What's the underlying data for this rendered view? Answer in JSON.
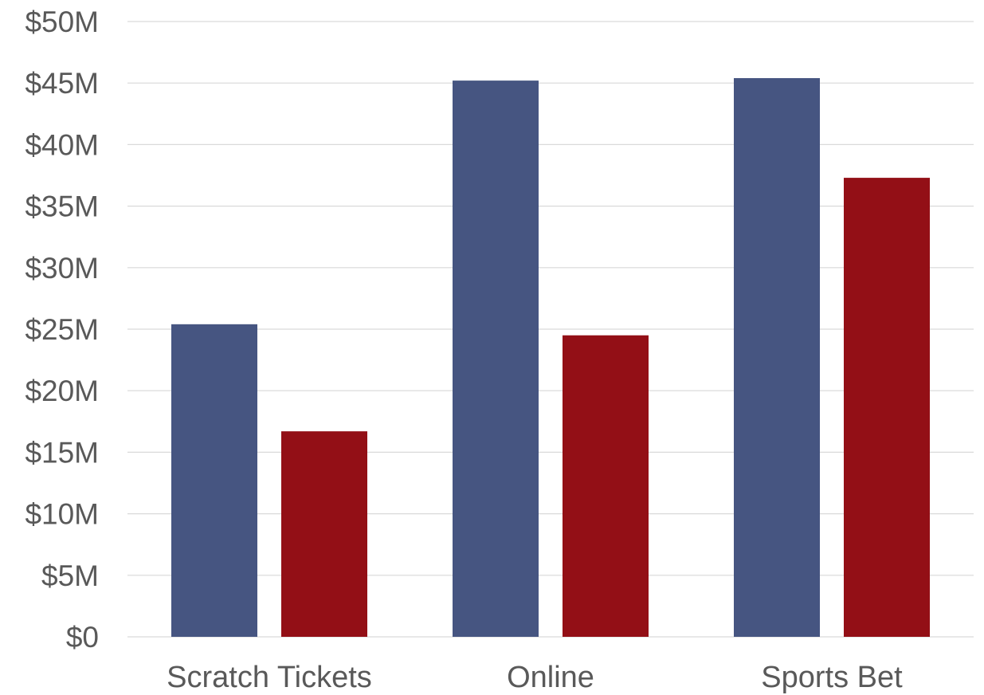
{
  "chart_data": {
    "type": "bar",
    "title": "",
    "xlabel": "",
    "ylabel": "",
    "categories": [
      "Scratch Tickets",
      "Online",
      "Sports Bet"
    ],
    "series": [
      {
        "values": [
          25.4,
          45.2,
          45.4
        ],
        "color": "#465581"
      },
      {
        "values": [
          16.7,
          24.5,
          37.3
        ],
        "color": "#930f16"
      }
    ],
    "ylim": [
      0,
      50
    ],
    "yticks": [
      0,
      5,
      10,
      15,
      20,
      25,
      30,
      35,
      40,
      45,
      50
    ],
    "ytick_labels": [
      "$0",
      "$5M",
      "$10M",
      "$15M",
      "$20M",
      "$25M",
      "$30M",
      "$35M",
      "$40M",
      "$45M",
      "$50M"
    ],
    "grid": true,
    "legend": "none"
  }
}
